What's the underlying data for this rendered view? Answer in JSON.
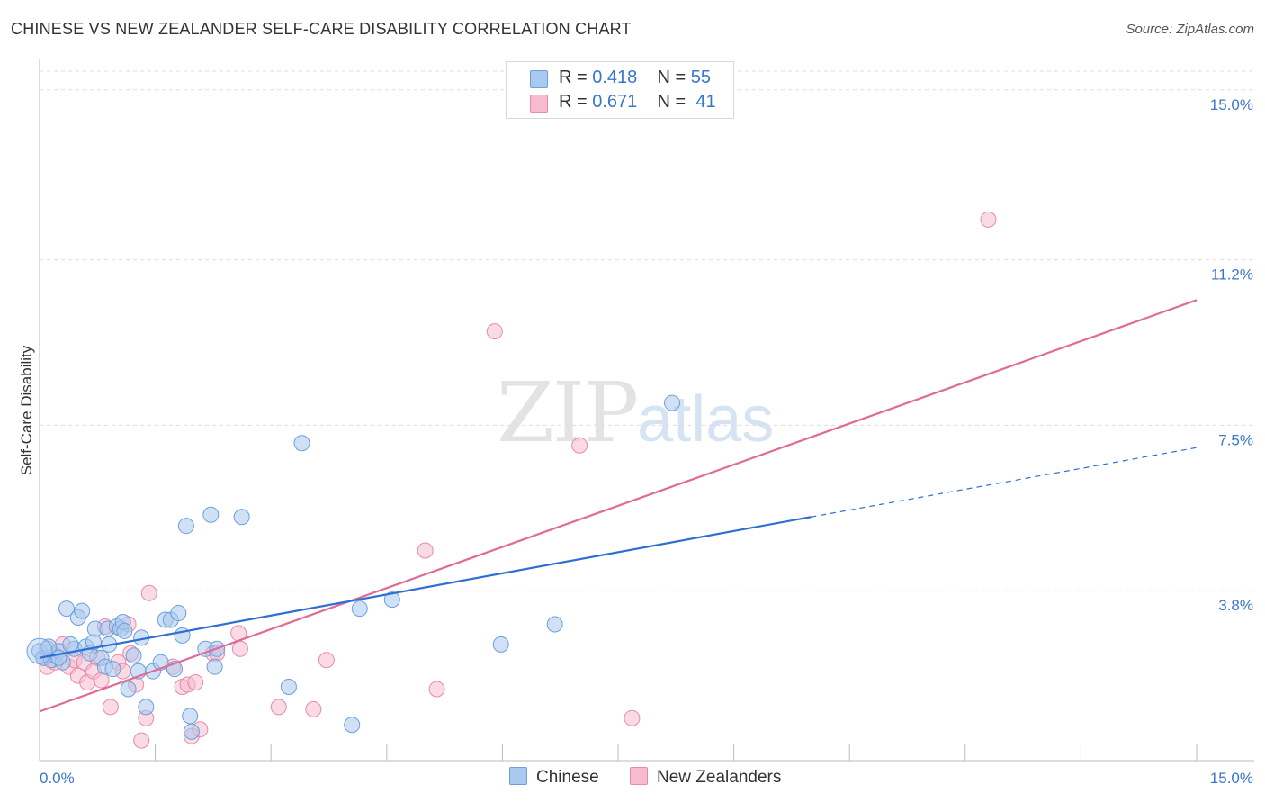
{
  "header": {
    "title": "CHINESE VS NEW ZEALANDER SELF-CARE DISABILITY CORRELATION CHART",
    "source": "Source: ZipAtlas.com"
  },
  "watermark": {
    "zip": "ZIP",
    "atlas": "atlas"
  },
  "legend": {
    "chinese": {
      "r_label": "R =",
      "r_value": "0.418",
      "n_label": "N =",
      "n_value": "55"
    },
    "nz": {
      "r_label": "R =",
      "r_value": "0.671",
      "n_label": "N =",
      "n_value": "41"
    }
  },
  "colors": {
    "chinese_fill": "#aac9ef",
    "chinese_stroke": "#6b9fdc",
    "chinese_line": "#2f6fd1",
    "nz_fill": "#f6bccd",
    "nz_stroke": "#e98aa9",
    "nz_line": "#e06b98",
    "tick_text": "#3a76c9",
    "grid": "#dddddd"
  },
  "chart_data": {
    "type": "scatter",
    "title": "CHINESE VS NEW ZEALANDER SELF-CARE DISABILITY CORRELATION CHART",
    "xlabel": "",
    "ylabel": "Self-Care Disability",
    "xlim": [
      0,
      15
    ],
    "ylim": [
      0,
      15.6
    ],
    "x_tick_labels": [
      "0.0%",
      "15.0%"
    ],
    "y_ticks": [
      3.8,
      7.5,
      11.2,
      15.0
    ],
    "y_tick_labels": [
      "3.8%",
      "7.5%",
      "11.2%",
      "15.0%"
    ],
    "grid": true,
    "series": [
      {
        "name": "Chinese",
        "r": 0.418,
        "n": 55,
        "trend": {
          "x": [
            0,
            10.0
          ],
          "y": [
            2.3,
            5.45
          ],
          "dashed_to_x": 15.0,
          "dashed_y": 7.0
        },
        "points": [
          [
            0.0,
            2.45
          ],
          [
            0.05,
            2.3
          ],
          [
            0.1,
            2.5
          ],
          [
            0.15,
            2.25
          ],
          [
            0.2,
            2.35
          ],
          [
            0.25,
            2.45
          ],
          [
            0.3,
            2.2
          ],
          [
            0.35,
            3.4
          ],
          [
            0.45,
            2.5
          ],
          [
            0.5,
            3.2
          ],
          [
            0.55,
            3.35
          ],
          [
            0.6,
            2.55
          ],
          [
            0.65,
            2.4
          ],
          [
            0.7,
            2.65
          ],
          [
            0.72,
            2.95
          ],
          [
            0.8,
            2.3
          ],
          [
            0.85,
            2.1
          ],
          [
            0.88,
            2.95
          ],
          [
            0.95,
            2.05
          ],
          [
            1.0,
            3.0
          ],
          [
            1.05,
            2.95
          ],
          [
            1.08,
            3.1
          ],
          [
            1.15,
            1.6
          ],
          [
            1.22,
            2.35
          ],
          [
            1.28,
            2.0
          ],
          [
            1.32,
            2.75
          ],
          [
            1.38,
            1.2
          ],
          [
            1.47,
            2.0
          ],
          [
            1.57,
            2.2
          ],
          [
            1.63,
            3.15
          ],
          [
            1.7,
            3.15
          ],
          [
            1.75,
            2.05
          ],
          [
            1.8,
            3.3
          ],
          [
            1.85,
            2.8
          ],
          [
            1.9,
            5.25
          ],
          [
            1.95,
            1.0
          ],
          [
            1.97,
            0.65
          ],
          [
            2.15,
            2.5
          ],
          [
            2.22,
            5.5
          ],
          [
            2.27,
            2.1
          ],
          [
            2.3,
            2.5
          ],
          [
            2.62,
            5.45
          ],
          [
            3.23,
            1.65
          ],
          [
            3.4,
            7.1
          ],
          [
            4.05,
            0.8
          ],
          [
            4.15,
            3.4
          ],
          [
            4.57,
            3.6
          ],
          [
            5.98,
            2.6
          ],
          [
            6.68,
            3.05
          ],
          [
            8.2,
            8.0
          ],
          [
            0.12,
            2.55
          ],
          [
            0.4,
            2.6
          ],
          [
            1.1,
            2.9
          ],
          [
            0.25,
            2.3
          ],
          [
            0.9,
            2.6
          ]
        ]
      },
      {
        "name": "New Zealanders",
        "r": 0.671,
        "n": 41,
        "trend": {
          "x": [
            0,
            15.0
          ],
          "y": [
            1.1,
            10.3
          ]
        },
        "points": [
          [
            0.05,
            2.3
          ],
          [
            0.1,
            2.1
          ],
          [
            0.2,
            2.2
          ],
          [
            0.3,
            2.6
          ],
          [
            0.38,
            2.1
          ],
          [
            0.45,
            2.25
          ],
          [
            0.5,
            1.9
          ],
          [
            0.58,
            2.2
          ],
          [
            0.62,
            1.75
          ],
          [
            0.7,
            2.0
          ],
          [
            0.75,
            2.3
          ],
          [
            0.8,
            1.8
          ],
          [
            0.85,
            3.0
          ],
          [
            0.92,
            1.2
          ],
          [
            1.02,
            2.2
          ],
          [
            1.08,
            2.0
          ],
          [
            1.15,
            3.05
          ],
          [
            1.18,
            2.4
          ],
          [
            1.25,
            1.7
          ],
          [
            1.32,
            0.45
          ],
          [
            1.38,
            0.95
          ],
          [
            1.42,
            3.75
          ],
          [
            1.73,
            2.1
          ],
          [
            1.85,
            1.65
          ],
          [
            1.92,
            1.7
          ],
          [
            1.97,
            0.55
          ],
          [
            2.02,
            1.75
          ],
          [
            2.08,
            0.7
          ],
          [
            2.25,
            2.4
          ],
          [
            2.3,
            2.4
          ],
          [
            2.58,
            2.85
          ],
          [
            2.6,
            2.5
          ],
          [
            3.1,
            1.2
          ],
          [
            3.55,
            1.15
          ],
          [
            3.72,
            2.25
          ],
          [
            5.0,
            4.7
          ],
          [
            5.15,
            1.6
          ],
          [
            5.9,
            9.6
          ],
          [
            7.0,
            7.05
          ],
          [
            7.68,
            0.95
          ],
          [
            12.3,
            12.1
          ]
        ]
      }
    ]
  },
  "bottom_legend": {
    "chinese": "Chinese",
    "nz": "New Zealanders"
  }
}
